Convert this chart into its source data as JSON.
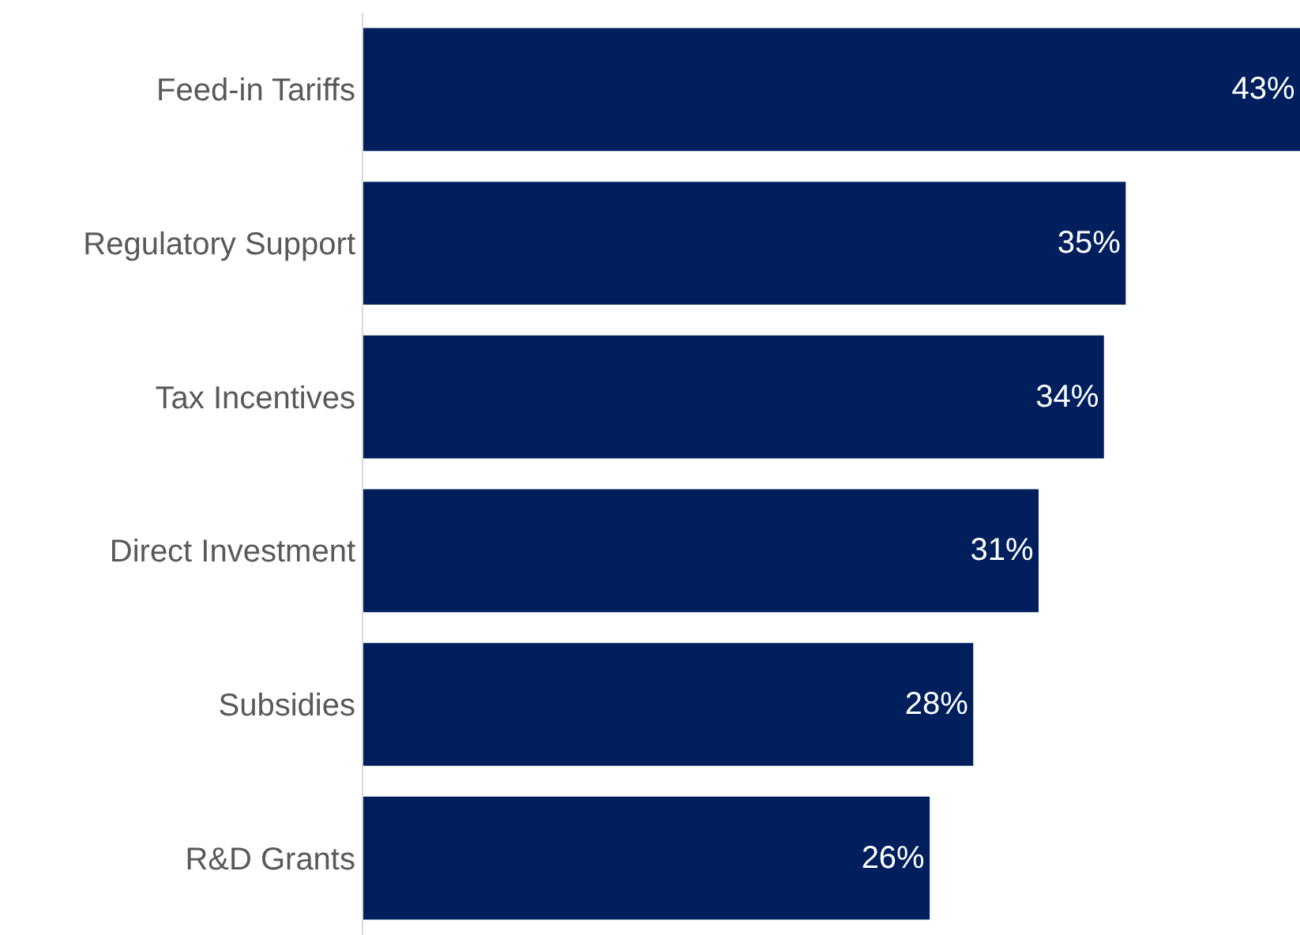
{
  "chart_data": {
    "type": "bar",
    "orientation": "horizontal",
    "categories": [
      "Feed-in Tariffs",
      "Regulatory Support",
      "Tax Incentives",
      "Direct Investment",
      "Subsidies",
      "R&D Grants"
    ],
    "values": [
      43,
      35,
      34,
      31,
      28,
      26
    ],
    "value_labels": [
      "43%",
      "35%",
      "34%",
      "31%",
      "28%",
      "26%"
    ],
    "color": "#001f5c"
  }
}
